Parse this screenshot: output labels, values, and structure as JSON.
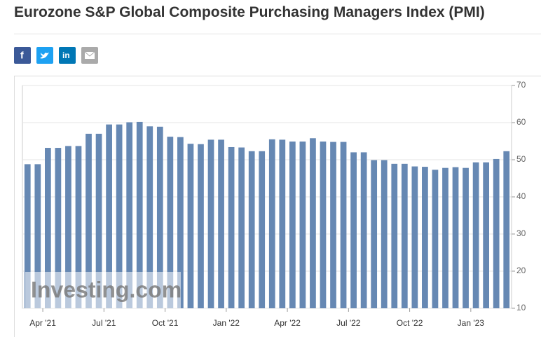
{
  "title": "Eurozone S&P Global Composite Purchasing Managers Index (PMI)",
  "chart_data": {
    "type": "bar",
    "watermark": "Investing.com",
    "color": "#6688b3",
    "categories": [
      null,
      "Apr '21",
      null,
      null,
      null,
      null,
      null,
      "Jul '21",
      null,
      null,
      null,
      null,
      null,
      "Oct '21",
      null,
      null,
      null,
      null,
      null,
      "Jan '22",
      null,
      null,
      null,
      null,
      null,
      "Apr '22",
      null,
      null,
      null,
      null,
      null,
      "Jul '22",
      null,
      null,
      null,
      null,
      null,
      "Oct '22",
      null,
      null,
      null,
      null,
      null,
      "Jan '23",
      null,
      null,
      null,
      null
    ],
    "values": [
      48.8,
      48.8,
      53.2,
      53.2,
      53.7,
      53.7,
      57.0,
      57.0,
      59.5,
      59.5,
      60.1,
      60.2,
      59.0,
      58.9,
      56.2,
      56.1,
      54.3,
      54.2,
      55.4,
      55.4,
      53.4,
      53.3,
      52.3,
      52.3,
      55.5,
      55.4,
      54.9,
      54.9,
      55.8,
      54.9,
      54.8,
      54.8,
      52.0,
      52.0,
      49.9,
      49.9,
      48.9,
      48.9,
      48.2,
      48.1,
      47.3,
      47.8,
      48.0,
      47.8,
      49.3,
      49.3,
      50.2,
      52.3
    ],
    "ylim": [
      10,
      70
    ],
    "yticks": [
      10,
      20,
      30,
      40,
      50,
      60,
      70
    ],
    "grid": true
  }
}
